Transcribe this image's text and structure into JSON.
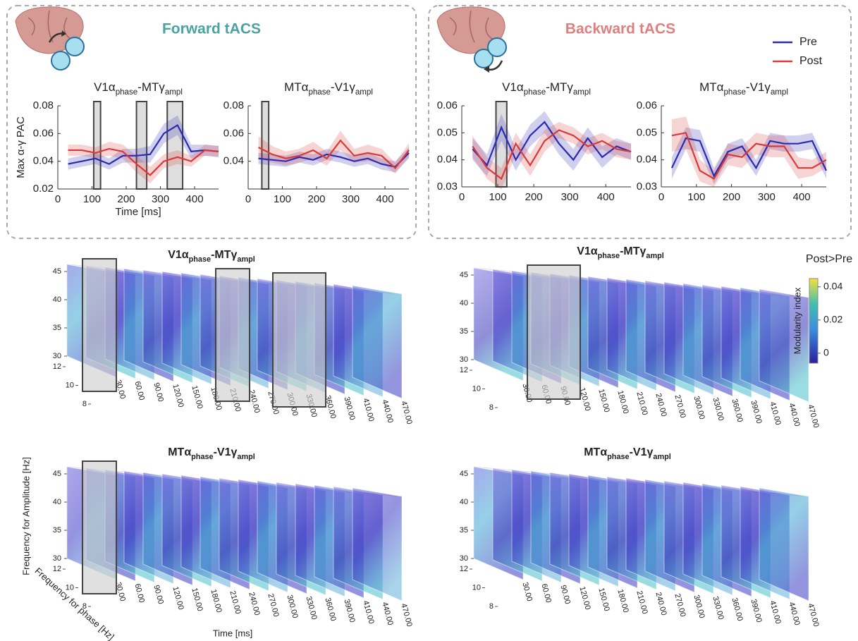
{
  "panels": [
    {
      "heading": "Forward tACS",
      "heading_color": "#4aa3a3"
    },
    {
      "heading": "Backward tACS",
      "heading_color": "#e07f7f"
    }
  ],
  "chart_data": [
    {
      "type": "line",
      "title_parts": [
        "V1α",
        "phase",
        "-MTγ",
        "ampl"
      ],
      "ylabel": "Max α-γ PAC",
      "xlabel": "Time [ms]",
      "x": [
        30,
        70,
        110,
        150,
        190,
        230,
        270,
        310,
        350,
        390,
        430,
        470
      ],
      "xlim": [
        0,
        470
      ],
      "xticks": [
        0,
        100,
        200,
        300,
        400
      ],
      "ylim": [
        0.02,
        0.08
      ],
      "yticks": [
        0.02,
        0.04,
        0.06,
        0.08
      ],
      "highlights": [
        [
          105,
          125
        ],
        [
          230,
          260
        ],
        [
          320,
          365
        ]
      ],
      "series": [
        {
          "color": "#2b2bb0",
          "values": [
            0.038,
            0.04,
            0.042,
            0.038,
            0.044,
            0.044,
            0.045,
            0.06,
            0.066,
            0.047,
            0.048,
            0.047
          ],
          "error": [
            0.004,
            0.004,
            0.004,
            0.004,
            0.005,
            0.005,
            0.006,
            0.007,
            0.007,
            0.005,
            0.004,
            0.004
          ]
        },
        {
          "color": "#d83a3a",
          "values": [
            0.048,
            0.048,
            0.046,
            0.049,
            0.047,
            0.038,
            0.03,
            0.04,
            0.043,
            0.04,
            0.048,
            0.047
          ],
          "error": [
            0.004,
            0.004,
            0.004,
            0.005,
            0.005,
            0.006,
            0.006,
            0.005,
            0.005,
            0.004,
            0.004,
            0.004
          ]
        }
      ]
    },
    {
      "type": "line",
      "title_parts": [
        "MTα",
        "phase",
        "-V1γ",
        "ampl"
      ],
      "x": [
        30,
        70,
        110,
        150,
        190,
        230,
        270,
        310,
        350,
        390,
        430,
        470
      ],
      "xlim": [
        0,
        470
      ],
      "xticks": [
        0,
        100,
        200,
        300,
        400
      ],
      "ylim": [
        0.02,
        0.08
      ],
      "yticks": [
        0.04,
        0.06,
        0.08
      ],
      "highlights": [
        [
          40,
          60
        ]
      ],
      "series": [
        {
          "color": "#2b2bb0",
          "values": [
            0.042,
            0.041,
            0.04,
            0.043,
            0.041,
            0.045,
            0.043,
            0.04,
            0.042,
            0.038,
            0.036,
            0.046
          ],
          "error": [
            0.004,
            0.004,
            0.004,
            0.004,
            0.004,
            0.004,
            0.004,
            0.004,
            0.004,
            0.004,
            0.004,
            0.004
          ]
        },
        {
          "color": "#d83a3a",
          "values": [
            0.05,
            0.045,
            0.042,
            0.044,
            0.048,
            0.042,
            0.055,
            0.044,
            0.046,
            0.044,
            0.035,
            0.048
          ],
          "error": [
            0.008,
            0.006,
            0.005,
            0.005,
            0.006,
            0.005,
            0.007,
            0.005,
            0.006,
            0.005,
            0.004,
            0.005
          ]
        }
      ]
    },
    {
      "type": "line",
      "title_parts": [
        "V1α",
        "phase",
        "-MTγ",
        "ampl"
      ],
      "legend": "upper right",
      "x": [
        30,
        70,
        110,
        150,
        190,
        230,
        270,
        310,
        350,
        390,
        430,
        470
      ],
      "xlim": [
        0,
        470
      ],
      "xticks": [
        0,
        100,
        200,
        300,
        400
      ],
      "ylim": [
        0.03,
        0.06
      ],
      "yticks": [
        0.03,
        0.04,
        0.05,
        0.06
      ],
      "highlights": [
        [
          95,
          125
        ]
      ],
      "series": [
        {
          "name": "Pre",
          "color": "#2b2bb0",
          "values": [
            0.044,
            0.038,
            0.052,
            0.04,
            0.049,
            0.054,
            0.046,
            0.04,
            0.048,
            0.041,
            0.045,
            0.043
          ],
          "error": [
            0.004,
            0.004,
            0.005,
            0.004,
            0.004,
            0.004,
            0.004,
            0.004,
            0.004,
            0.004,
            0.003,
            0.003
          ]
        },
        {
          "name": "Post",
          "color": "#d83a3a",
          "values": [
            0.045,
            0.037,
            0.033,
            0.046,
            0.038,
            0.047,
            0.051,
            0.049,
            0.045,
            0.047,
            0.044,
            0.043
          ],
          "error": [
            0.004,
            0.004,
            0.004,
            0.004,
            0.004,
            0.004,
            0.003,
            0.003,
            0.003,
            0.003,
            0.003,
            0.003
          ]
        }
      ]
    },
    {
      "type": "line",
      "title_parts": [
        "MTα",
        "phase",
        "-V1γ",
        "ampl"
      ],
      "x": [
        30,
        70,
        110,
        150,
        190,
        230,
        270,
        310,
        350,
        390,
        430,
        470
      ],
      "xlim": [
        0,
        470
      ],
      "xticks": [
        0,
        100,
        200,
        300,
        400
      ],
      "ylim": [
        0.03,
        0.06
      ],
      "yticks": [
        0.03,
        0.04,
        0.05,
        0.06
      ],
      "highlights": [],
      "series": [
        {
          "color": "#2b2bb0",
          "values": [
            0.037,
            0.048,
            0.047,
            0.034,
            0.043,
            0.045,
            0.037,
            0.047,
            0.046,
            0.046,
            0.047,
            0.036
          ],
          "error": [
            0.004,
            0.004,
            0.004,
            0.003,
            0.003,
            0.003,
            0.003,
            0.003,
            0.003,
            0.003,
            0.003,
            0.003
          ]
        },
        {
          "color": "#d83a3a",
          "values": [
            0.049,
            0.05,
            0.036,
            0.033,
            0.042,
            0.041,
            0.046,
            0.045,
            0.045,
            0.037,
            0.037,
            0.04
          ],
          "error": [
            0.006,
            0.006,
            0.004,
            0.003,
            0.004,
            0.004,
            0.004,
            0.004,
            0.004,
            0.004,
            0.003,
            0.003
          ]
        }
      ]
    },
    {
      "type": "slices3d",
      "title_parts": [
        "V1α",
        "phase",
        "-MTγ",
        "ampl"
      ],
      "categories": [
        "30.00",
        "60.00",
        "90.00",
        "120.00",
        "150.00",
        "180.00",
        "210.00",
        "240.00",
        "270.00",
        "300.00",
        "330.00",
        "360.00",
        "390.00",
        "410.00",
        "440.00",
        "470.00"
      ],
      "yticks": [
        30,
        35,
        40,
        45
      ],
      "ylim": [
        30,
        45
      ],
      "zticks": [
        8,
        10,
        12
      ],
      "zlim": [
        8,
        12
      ],
      "highlights": [
        [
          0,
          0
        ],
        [
          7,
          7
        ],
        [
          10,
          11
        ]
      ]
    },
    {
      "type": "slices3d",
      "title_parts": [
        "V1α",
        "phase",
        "-MTγ",
        "ampl"
      ],
      "categories": [
        "30.00",
        "60.00",
        "90.00",
        "120.00",
        "150.00",
        "180.00",
        "210.00",
        "240.00",
        "270.00",
        "300.00",
        "330.00",
        "360.00",
        "390.00",
        "410.00",
        "440.00",
        "470.00"
      ],
      "yticks": [
        30,
        35,
        40,
        45
      ],
      "ylim": [
        30,
        45
      ],
      "zticks": [
        8,
        10,
        12
      ],
      "zlim": [
        8,
        12
      ],
      "highlights": [
        [
          2,
          3
        ]
      ]
    },
    {
      "type": "slices3d",
      "title_parts": [
        "MTα",
        "phase",
        "-V1γ",
        "ampl"
      ],
      "ylabel": "Frequency for Amplitude [Hz]",
      "zlabel": "Frequency for phase [Hz]",
      "xlabel": "Time [ms]",
      "categories": [
        "30.00",
        "60.00",
        "90.00",
        "120.00",
        "150.00",
        "180.00",
        "210.00",
        "240.00",
        "270.00",
        "300.00",
        "330.00",
        "360.00",
        "390.00",
        "410.00",
        "440.00",
        "470.00"
      ],
      "yticks": [
        30,
        35,
        40,
        45
      ],
      "ylim": [
        30,
        45
      ],
      "zticks": [
        8,
        10,
        12
      ],
      "zlim": [
        8,
        12
      ],
      "highlights": [
        [
          0,
          0
        ]
      ]
    },
    {
      "type": "slices3d",
      "title_parts": [
        "MTα",
        "phase",
        "-V1γ",
        "ampl"
      ],
      "categories": [
        "30.00",
        "60.00",
        "90.00",
        "120.00",
        "150.00",
        "180.00",
        "210.00",
        "240.00",
        "270.00",
        "300.00",
        "330.00",
        "360.00",
        "390.00",
        "410.00",
        "440.00",
        "470.00"
      ],
      "yticks": [
        30,
        35,
        40,
        45
      ],
      "ylim": [
        30,
        45
      ],
      "zticks": [
        8,
        10,
        12
      ],
      "zlim": [
        8,
        12
      ],
      "highlights": []
    }
  ],
  "colorbar": {
    "title": "Post>Pre",
    "label": "Modularity index",
    "lim": [
      -0.006,
      0.045
    ],
    "ticks": [
      0,
      0.02,
      0.04
    ]
  }
}
